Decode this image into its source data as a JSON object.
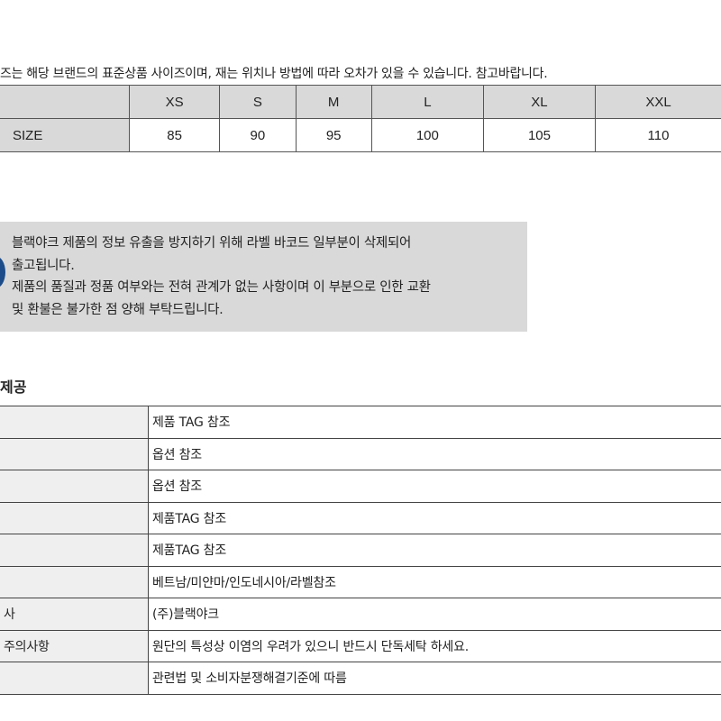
{
  "size_notice": "즈는 해당 브랜드의 표준상품 사이즈이며, 재는 위치나 방법에 따라 오차가 있을 수 있습니다. 참고바랍니다.",
  "size_table": {
    "headers": [
      "",
      "XS",
      "S",
      "M",
      "L",
      "XL",
      "XXL"
    ],
    "rows": [
      [
        "SIZE",
        "85",
        "90",
        "95",
        "100",
        "105",
        "110"
      ]
    ]
  },
  "label_notice": {
    "lines": [
      "블랙야크 제품의 정보 유출을 방지하기 위해 라벨 바코드 일부분이 삭제되어",
      "출고됩니다.",
      "제품의 품질과 정품 여부와는 전혀 관계가 없는 사항이며 이 부분으로 인한 교환",
      "및 환불은 불가한 점 양해 부탁드립니다."
    ],
    "icon": "info-circle-icon",
    "icon_color": "#1c4d8a"
  },
  "info_section": {
    "title": "제공",
    "rows": [
      {
        "key": "",
        "value": "제품 TAG 참조"
      },
      {
        "key": "",
        "value": "옵션 참조"
      },
      {
        "key": "",
        "value": "옵션 참조"
      },
      {
        "key": "",
        "value": "제품TAG 참조"
      },
      {
        "key": "",
        "value": "제품TAG 참조"
      },
      {
        "key": "",
        "value": "베트남/미얀마/인도네시아/라벨참조"
      },
      {
        "key": "사",
        "value": "(주)블랙야크"
      },
      {
        "key": "주의사항",
        "value": "원단의 특성상 이염의 우려가 있으니 반드시 단독세탁 하세요."
      },
      {
        "key": "",
        "value": "관련법 및 소비자분쟁해결기준에 따름"
      }
    ]
  }
}
